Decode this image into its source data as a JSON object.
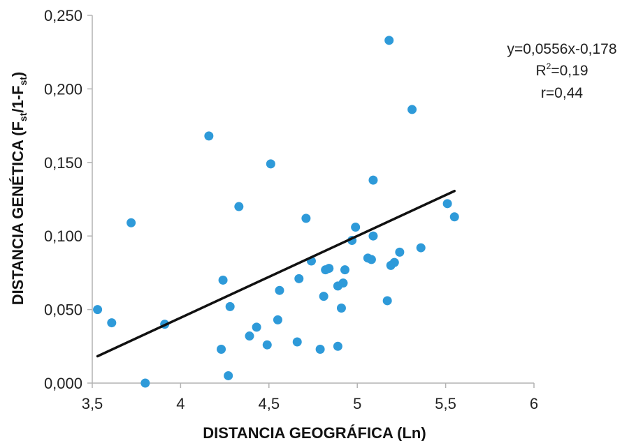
{
  "chart_data": {
    "type": "scatter",
    "xlabel": "DISTANCIA GEOGRÁFICA (Ln)",
    "ylabel": {
      "prefix": "DISTANCIA GENÉTICA (F",
      "sub1": "st",
      "mid": "/1-F",
      "sub2": "st",
      "suffix": ")"
    },
    "xlim": [
      3.5,
      6
    ],
    "ylim": [
      0,
      0.25
    ],
    "xticks": [
      3.5,
      4,
      4.5,
      5,
      5.5,
      6
    ],
    "xtick_labels": [
      "3,5",
      "4",
      "4,5",
      "5",
      "5,5",
      "6"
    ],
    "yticks": [
      0,
      0.05,
      0.1,
      0.15,
      0.2,
      0.25
    ],
    "ytick_labels": [
      "0,000",
      "0,050",
      "0,100",
      "0,150",
      "0,200",
      "0,250"
    ],
    "grid": false,
    "legend": "none",
    "points": [
      [
        3.53,
        0.05
      ],
      [
        3.61,
        0.041
      ],
      [
        3.72,
        0.109
      ],
      [
        3.8,
        0.0
      ],
      [
        3.91,
        0.04
      ],
      [
        4.16,
        0.168
      ],
      [
        4.23,
        0.023
      ],
      [
        4.24,
        0.07
      ],
      [
        4.27,
        0.005
      ],
      [
        4.28,
        0.052
      ],
      [
        4.33,
        0.12
      ],
      [
        4.39,
        0.032
      ],
      [
        4.43,
        0.038
      ],
      [
        4.49,
        0.026
      ],
      [
        4.51,
        0.149
      ],
      [
        4.55,
        0.043
      ],
      [
        4.56,
        0.063
      ],
      [
        4.66,
        0.028
      ],
      [
        4.67,
        0.071
      ],
      [
        4.71,
        0.112
      ],
      [
        4.74,
        0.083
      ],
      [
        4.79,
        0.023
      ],
      [
        4.81,
        0.059
      ],
      [
        4.82,
        0.077
      ],
      [
        4.84,
        0.078
      ],
      [
        4.89,
        0.025
      ],
      [
        4.89,
        0.066
      ],
      [
        4.91,
        0.051
      ],
      [
        4.92,
        0.068
      ],
      [
        4.93,
        0.077
      ],
      [
        4.97,
        0.097
      ],
      [
        4.99,
        0.106
      ],
      [
        5.06,
        0.085
      ],
      [
        5.08,
        0.084
      ],
      [
        5.09,
        0.138
      ],
      [
        5.09,
        0.1
      ],
      [
        5.17,
        0.056
      ],
      [
        5.18,
        0.233
      ],
      [
        5.19,
        0.08
      ],
      [
        5.21,
        0.082
      ],
      [
        5.24,
        0.089
      ],
      [
        5.31,
        0.186
      ],
      [
        5.36,
        0.092
      ],
      [
        5.51,
        0.122
      ],
      [
        5.55,
        0.113
      ]
    ],
    "regression": {
      "slope": 0.0556,
      "intercept": -0.178,
      "x_start": 3.53,
      "x_end": 5.55
    },
    "annotations": {
      "equation": "y=0,0556x-0,178",
      "r2_prefix": "R",
      "r2_exp": "2",
      "r2_value": "=0,19",
      "r": "r=0,44"
    },
    "colors": {
      "points": "#2e9ad9",
      "line": "#111111",
      "axis": "#b3b3b3"
    }
  }
}
